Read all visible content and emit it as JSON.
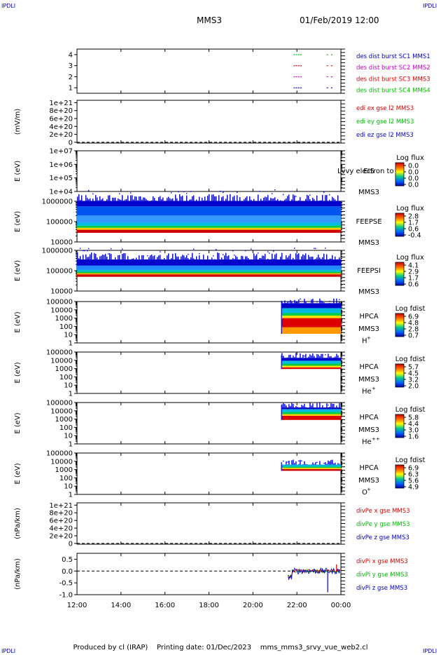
{
  "header": {
    "corner_label": "IPDLI",
    "spacecraft": "MMS3",
    "datetime": "01/Feb/2019 12:00"
  },
  "footer": {
    "produced_by": "Produced by cl (IRAP)",
    "printing_date": "Printing date: 01/Dec/2023",
    "config": "mms_mms3_srvy_vue_web2.cl"
  },
  "colors": {
    "blue": "#0000cc",
    "magenta": "#cc00cc",
    "red": "#dd0000",
    "green": "#00bb00",
    "black": "#000000"
  },
  "chart_data": [
    {
      "type": "scatter",
      "name": "burst-availability",
      "ylabel": "",
      "yticks": [
        "4",
        "3",
        "2",
        "1"
      ],
      "ylim": [
        0.5,
        4.5
      ],
      "legend": [
        {
          "text": "des dist burst SC1 MMS1",
          "color": "#0000cc"
        },
        {
          "text": "des dist burst SC2 MMS2",
          "color": "#cc00cc"
        },
        {
          "text": "des dist burst SC3 MMS3",
          "color": "#dd0000"
        },
        {
          "text": "des dist burst SC4 MMS4",
          "color": "#00bb00"
        }
      ],
      "series": [
        {
          "level": 4,
          "color": "#00bb00",
          "x": [
            9.85,
            9.95,
            10.05,
            10.15,
            11.35,
            11.55
          ]
        },
        {
          "level": 3,
          "color": "#dd0000",
          "x": [
            9.85,
            9.95,
            10.05,
            10.15,
            11.35,
            11.55
          ]
        },
        {
          "level": 2,
          "color": "#cc00cc",
          "x": [
            9.85,
            9.95,
            10.05,
            10.15,
            11.35,
            11.55
          ]
        },
        {
          "level": 1,
          "color": "#0000cc",
          "x": [
            9.85,
            9.95,
            10.05,
            10.15,
            11.35,
            11.55
          ]
        }
      ]
    },
    {
      "type": "line",
      "name": "edi-electric-field",
      "ylabel": "(mV/m)",
      "yticks": [
        "1e+21",
        "8e+20",
        "6e+20",
        "4e+20",
        "2e+20",
        "0"
      ],
      "yvalues": [
        1e+21,
        8e+20,
        6e+20,
        4e+20,
        2e+20,
        0
      ],
      "ylim": [
        -2e+19,
        1.06e+21
      ],
      "zero_line": true,
      "legend": [
        {
          "text": "edi ex gse l2 MMS3",
          "color": "#dd0000"
        },
        {
          "text": "edi ey gse l2 MMS3",
          "color": "#00bb00"
        },
        {
          "text": "edi ez gse l2 MMS3",
          "color": "#0000cc"
        }
      ]
    },
    {
      "type": "heatmap",
      "name": "eis",
      "ylabel": "E (eV)",
      "yticks": [
        "1e+07",
        "1e+06",
        "1e+05",
        "1e+04"
      ],
      "yexp": [
        7,
        6,
        5,
        4
      ],
      "instrument": "EIS",
      "extra_label": "Lvvy electron to",
      "sc": "MMS3",
      "colorbar_title": "Log flux",
      "colorbar_ticks": [
        "0.0",
        "0.0",
        "0.0",
        "0.0"
      ]
    },
    {
      "type": "heatmap",
      "name": "feepse",
      "ylabel": "E (eV)",
      "yticks": [
        "1000000",
        "100000",
        "10000"
      ],
      "yexp": [
        6,
        5,
        4
      ],
      "instrument": "FEEPSE",
      "sc": "MMS3",
      "colorbar_title": "Log flux",
      "colorbar_ticks": [
        "2.8",
        "1.7",
        "0.6",
        "-0.4"
      ],
      "x_range": [
        0,
        12
      ],
      "bands": [
        {
          "elo": 4.45,
          "ehi": 4.6,
          "color": "#cc0000"
        },
        {
          "elo": 4.6,
          "ehi": 4.7,
          "color": "#ffcc00"
        },
        {
          "elo": 4.7,
          "ehi": 4.8,
          "color": "#00cc44"
        },
        {
          "elo": 4.8,
          "ehi": 4.95,
          "color": "#00bbdd"
        },
        {
          "elo": 4.95,
          "ehi": 5.3,
          "color": "#3399ff"
        },
        {
          "elo": 5.3,
          "ehi": 5.75,
          "color": "#0055ee"
        },
        {
          "elo": 5.75,
          "ehi": 6.0,
          "color": "#0000cc"
        }
      ]
    },
    {
      "type": "heatmap",
      "name": "feepsi",
      "ylabel": "E (eV)",
      "yticks": [
        "1000000",
        "100000",
        "10000"
      ],
      "yexp": [
        6,
        5,
        4
      ],
      "instrument": "FEEPSI",
      "sc": "MMS3",
      "colorbar_title": "Log flux",
      "colorbar_ticks": [
        "4.1",
        "2.9",
        "1.7",
        "0.6"
      ],
      "x_range": [
        0,
        12
      ],
      "bands": [
        {
          "elo": 4.7,
          "ehi": 4.82,
          "color": "#cc0000"
        },
        {
          "elo": 4.82,
          "ehi": 4.88,
          "color": "#ffaa00"
        },
        {
          "elo": 4.88,
          "ehi": 4.95,
          "color": "#00cc44"
        },
        {
          "elo": 4.95,
          "ehi": 5.05,
          "color": "#00bbdd"
        },
        {
          "elo": 5.05,
          "ehi": 5.25,
          "color": "#2288ff"
        },
        {
          "elo": 5.25,
          "ehi": 5.55,
          "color": "#0000cc"
        }
      ]
    },
    {
      "type": "heatmap",
      "name": "hpca-h",
      "ylabel": "E (eV)",
      "yticks": [
        "100000",
        "10000",
        "1000",
        "100",
        "10",
        "1"
      ],
      "yexp": [
        5,
        4,
        3,
        2,
        1,
        0
      ],
      "instrument": "HPCA",
      "sc": "MMS3",
      "species": "H",
      "species_sup": "+",
      "colorbar_title": "Log fdist",
      "colorbar_ticks": [
        "6.9",
        "4.8",
        "2.8",
        "0.7"
      ],
      "x_range": [
        9.3,
        12
      ],
      "bands": [
        {
          "elo": 1.1,
          "ehi": 1.9,
          "color": "#ff9900"
        },
        {
          "elo": 1.9,
          "ehi": 3.0,
          "color": "#dd0000"
        },
        {
          "elo": 3.0,
          "ehi": 3.3,
          "color": "#ffdd00"
        },
        {
          "elo": 3.3,
          "ehi": 3.6,
          "color": "#00cc44"
        },
        {
          "elo": 3.6,
          "ehi": 4.2,
          "color": "#00bbdd"
        },
        {
          "elo": 4.2,
          "ehi": 4.8,
          "color": "#0000cc"
        }
      ]
    },
    {
      "type": "heatmap",
      "name": "hpca-he",
      "ylabel": "E (eV)",
      "yticks": [
        "100000",
        "10000",
        "1000",
        "100",
        "10",
        "1"
      ],
      "yexp": [
        5,
        4,
        3,
        2,
        1,
        0
      ],
      "instrument": "HPCA",
      "sc": "MMS3",
      "species": "He",
      "species_sup": "+",
      "colorbar_title": "Log fdist",
      "colorbar_ticks": [
        "5.7",
        "4.5",
        "3.2",
        "2.0"
      ],
      "x_range": [
        9.3,
        12
      ],
      "bands": [
        {
          "elo": 2.95,
          "ehi": 3.15,
          "color": "#dd0000"
        },
        {
          "elo": 3.15,
          "ehi": 3.35,
          "color": "#ffdd00"
        },
        {
          "elo": 3.35,
          "ehi": 3.6,
          "color": "#00cc44"
        },
        {
          "elo": 3.6,
          "ehi": 3.95,
          "color": "#00bbdd"
        },
        {
          "elo": 3.95,
          "ehi": 4.3,
          "color": "#0000cc"
        }
      ]
    },
    {
      "type": "heatmap",
      "name": "hpca-hepp",
      "ylabel": "E (eV)",
      "yticks": [
        "100000",
        "10000",
        "1000",
        "100",
        "10",
        "1"
      ],
      "yexp": [
        5,
        4,
        3,
        2,
        1,
        0
      ],
      "instrument": "HPCA",
      "sc": "MMS3",
      "species": "He",
      "species_sup": "++",
      "colorbar_title": "Log fdist",
      "colorbar_ticks": [
        "5.8",
        "4.4",
        "3.0",
        "1.6"
      ],
      "x_range": [
        9.3,
        12
      ],
      "bands": [
        {
          "elo": 2.9,
          "ehi": 3.4,
          "color": "#dd0000"
        },
        {
          "elo": 3.4,
          "ehi": 3.6,
          "color": "#ffcc00"
        },
        {
          "elo": 3.6,
          "ehi": 3.85,
          "color": "#00cc44"
        },
        {
          "elo": 3.85,
          "ehi": 4.2,
          "color": "#00bbdd"
        },
        {
          "elo": 4.2,
          "ehi": 4.4,
          "color": "#0000cc"
        }
      ]
    },
    {
      "type": "heatmap",
      "name": "hpca-o",
      "ylabel": "E (eV)",
      "yticks": [
        "100000",
        "10000",
        "1000",
        "100",
        "10",
        "1"
      ],
      "yexp": [
        5,
        4,
        3,
        2,
        1,
        0
      ],
      "instrument": "HPCA",
      "sc": "MMS3",
      "species": "O",
      "species_sup": "+",
      "colorbar_title": "Log fdist",
      "colorbar_ticks": [
        "6.9",
        "6.3",
        "5.6",
        "4.9"
      ],
      "x_range": [
        9.3,
        12
      ],
      "bands": [
        {
          "elo": 2.85,
          "ehi": 3.05,
          "color": "#cc0000"
        },
        {
          "elo": 3.05,
          "ehi": 3.2,
          "color": "#ffcc00"
        },
        {
          "elo": 3.2,
          "ehi": 3.35,
          "color": "#00cc44"
        },
        {
          "elo": 3.35,
          "ehi": 3.6,
          "color": "#00bbdd"
        }
      ]
    },
    {
      "type": "line",
      "name": "divpe",
      "ylabel": "(nPa/km)",
      "yticks": [
        "1e+21",
        "8e+20",
        "6e+20",
        "4e+20",
        "2e+20",
        "0"
      ],
      "yvalues": [
        1e+21,
        8e+20,
        6e+20,
        4e+20,
        2e+20,
        0
      ],
      "ylim": [
        -2e+19,
        1.06e+21
      ],
      "zero_line": true,
      "legend": [
        {
          "text": "divPe x gse MMS3",
          "color": "#dd0000"
        },
        {
          "text": "divPe y gse MMS3",
          "color": "#00bb00"
        },
        {
          "text": "divPe z gse MMS3",
          "color": "#0000cc"
        }
      ]
    },
    {
      "type": "line",
      "name": "divpi",
      "ylabel": "(nPa/km)",
      "yticks": [
        "0.5",
        "0.0",
        "-0.5",
        "-1.0"
      ],
      "yvalues": [
        0.5,
        0.0,
        -0.5,
        -1.0
      ],
      "ylim": [
        -1.0,
        0.75
      ],
      "zero_line": true,
      "x_range": [
        9.6,
        12
      ],
      "legend": [
        {
          "text": "divPi x gse MMS3",
          "color": "#dd0000"
        },
        {
          "text": "divPi y gse MMS3",
          "color": "#00bb00"
        },
        {
          "text": "divPi z gse MMS3",
          "color": "#0000cc"
        }
      ]
    }
  ],
  "xaxis": {
    "ticks": [
      "12:00",
      "14:00",
      "16:00",
      "18:00",
      "20:00",
      "22:00",
      "00:00"
    ],
    "values": [
      0,
      2,
      4,
      6,
      8,
      10,
      12
    ],
    "range": [
      0,
      12
    ]
  }
}
